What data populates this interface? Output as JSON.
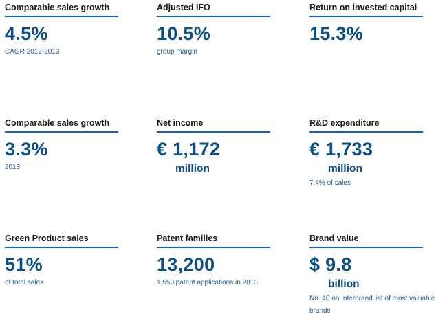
{
  "metrics": [
    {
      "title": "Comparable sales growth",
      "value": "4.5%",
      "unit": "",
      "subtitle": "CAGR 2012-2013"
    },
    {
      "title": "Adjusted IFO",
      "value": "10.5%",
      "unit": "",
      "subtitle": "group margin"
    },
    {
      "title": "Return on invested capital",
      "value": "15.3%",
      "unit": "",
      "subtitle": ""
    },
    {
      "title": "Comparable sales growth",
      "value": "3.3%",
      "unit": "",
      "subtitle": "2013"
    },
    {
      "title": "Net income",
      "value": "€ 1,172",
      "unit": "million",
      "subtitle": ""
    },
    {
      "title": "R&D expenditure",
      "value": "€ 1,733",
      "unit": "million",
      "subtitle": "7.4% of sales"
    },
    {
      "title": "Green Product sales",
      "value": "51%",
      "unit": "",
      "subtitle": "of total sales"
    },
    {
      "title": "Patent families",
      "value": "13,200",
      "unit": "",
      "subtitle": "1,550 patent applications in 2013"
    },
    {
      "title": "Brand value",
      "value": "$ 9.8",
      "unit": "billion",
      "subtitle": "No. 40 on Interbrand list of most valuable brands"
    }
  ],
  "colors": {
    "accent_rule": "#0b5ed7",
    "value_text": "#0a4f8a",
    "subtitle_text": "#1f5d91",
    "title_text": "#1a1a1a"
  }
}
